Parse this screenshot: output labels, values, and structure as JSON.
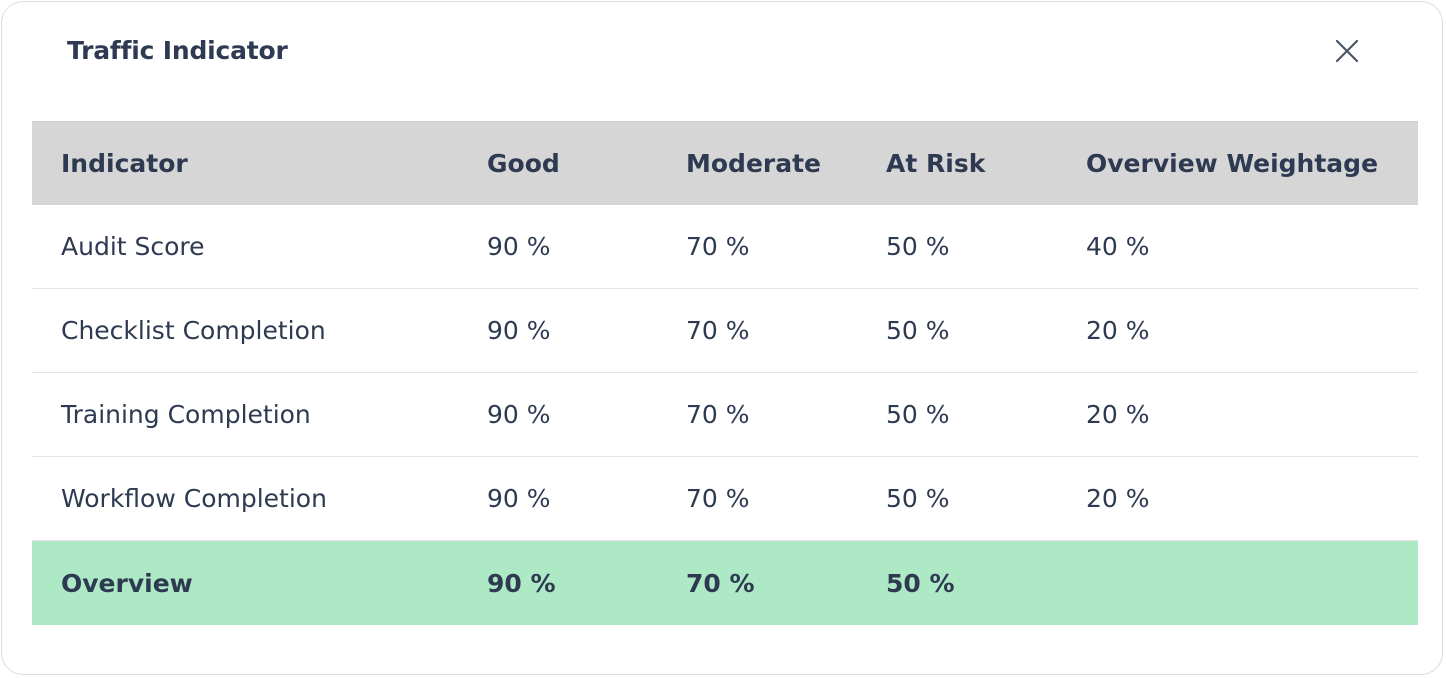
{
  "dialog": {
    "title": "Traffic Indicator",
    "close_icon": "close-icon"
  },
  "table": {
    "columns": [
      "Indicator",
      "Good",
      "Moderate",
      "At Risk",
      "Overview Weightage"
    ],
    "rows": [
      [
        "Audit Score",
        "90 %",
        "70 %",
        "50 %",
        "40 %"
      ],
      [
        "Checklist Completion",
        "90 %",
        "70 %",
        "50 %",
        "20 %"
      ],
      [
        "Training Completion",
        "90 %",
        "70 %",
        "50 %",
        "20 %"
      ],
      [
        "Workflow Completion",
        "90 %",
        "70 %",
        "50 %",
        "20 %"
      ]
    ],
    "overview": [
      "Overview",
      "90 %",
      "70 %",
      "50 %",
      ""
    ]
  },
  "colors": {
    "header_bg": "#d6d6d6",
    "overview_bg": "#ade9c4",
    "text": "#2e3a52"
  }
}
